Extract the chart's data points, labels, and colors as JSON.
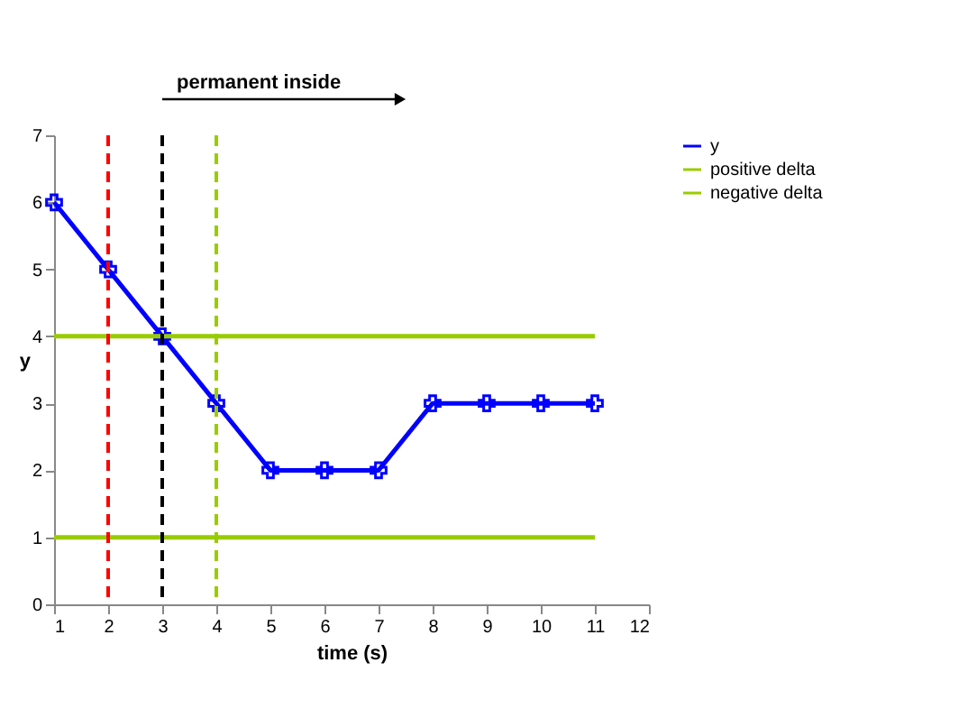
{
  "chart_data": {
    "type": "line",
    "xlabel": "time (s)",
    "ylabel": "y",
    "x": [
      1,
      2,
      3,
      4,
      5,
      6,
      7,
      8,
      9,
      10,
      11
    ],
    "series": [
      {
        "name": "y",
        "color": "#0000ff",
        "marker": "cross",
        "values": [
          6,
          5,
          4,
          3,
          2,
          2,
          2,
          3,
          3,
          3,
          3
        ]
      },
      {
        "name": "positive delta",
        "color": "#99cc00",
        "marker": "none",
        "values": [
          4,
          4,
          4,
          4,
          4,
          4,
          4,
          4,
          4,
          4,
          4
        ]
      },
      {
        "name": "negative delta",
        "color": "#99cc00",
        "marker": "none",
        "values": [
          1,
          1,
          1,
          1,
          1,
          1,
          1,
          1,
          1,
          1,
          1
        ]
      }
    ],
    "xlim": [
      1,
      12
    ],
    "xticks": [
      1,
      2,
      3,
      4,
      5,
      6,
      7,
      8,
      9,
      10,
      11,
      12
    ],
    "ylim": [
      0,
      7
    ],
    "yticks": [
      0,
      1,
      2,
      3,
      4,
      5,
      6,
      7
    ],
    "grid": false,
    "legend": "right",
    "ref_lines": [
      {
        "axis": "x",
        "value": 2,
        "color": "#ff0000",
        "line_style": "dashed"
      },
      {
        "axis": "x",
        "value": 4,
        "color": "#99cc00",
        "line_style": "dashed"
      },
      {
        "axis": "x",
        "value": 3,
        "color": "#000000",
        "line_style": "dashed",
        "label": "permanent inside"
      }
    ]
  }
}
